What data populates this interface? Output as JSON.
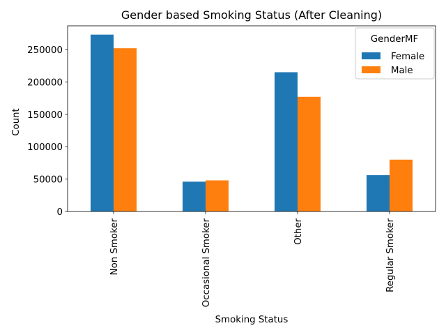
{
  "chart_data": {
    "type": "bar",
    "title": "Gender based Smoking Status (After Cleaning)",
    "xlabel": "Smoking Status",
    "ylabel": "Count",
    "categories": [
      "Non Smoker",
      "Occasional Smoker",
      "Other",
      "Regular Smoker"
    ],
    "series": [
      {
        "name": "Female",
        "color": "#1f77b4",
        "values": [
          273000,
          46000,
          215000,
          56000
        ]
      },
      {
        "name": "Male",
        "color": "#ff7f0e",
        "values": [
          252000,
          48000,
          177000,
          80000
        ]
      }
    ],
    "ylim": [
      0,
      286650
    ],
    "yticks": [
      0,
      50000,
      100000,
      150000,
      200000,
      250000
    ],
    "ytick_labels": [
      "0",
      "50000",
      "100000",
      "150000",
      "200000",
      "250000"
    ],
    "x_tick_rotation": "vertical",
    "grid": false,
    "legend": {
      "title": "GenderMF",
      "placement": "top-right"
    }
  }
}
